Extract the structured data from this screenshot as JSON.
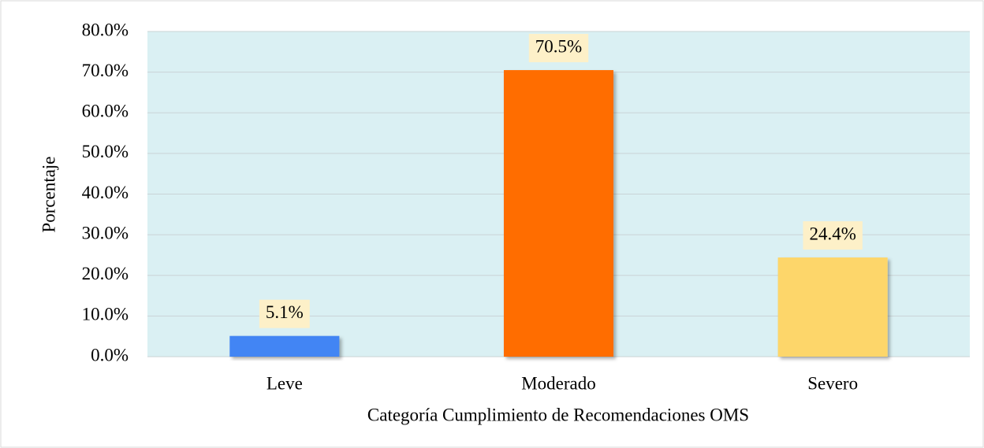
{
  "chart_data": {
    "type": "bar",
    "categories": [
      "Leve",
      "Moderado",
      "Severo"
    ],
    "values": [
      5.1,
      70.5,
      24.4
    ],
    "value_labels": [
      "5.1%",
      "70.5%",
      "24.4%"
    ],
    "colors": [
      "#4285f4",
      "#ff6d00",
      "#fdd66b"
    ],
    "xlabel": "Categoría Cumplimiento de Recomendaciones OMS",
    "ylabel": "Porcentaje",
    "ylim": [
      0,
      80
    ],
    "yticks": [
      {
        "value": 0,
        "label": "0.0%"
      },
      {
        "value": 10,
        "label": "10.0%"
      },
      {
        "value": 20,
        "label": "20.0%"
      },
      {
        "value": 30,
        "label": "30.0%"
      },
      {
        "value": 40,
        "label": "40.0%"
      },
      {
        "value": 50,
        "label": "50.0%"
      },
      {
        "value": 60,
        "label": "60.0%"
      },
      {
        "value": 70,
        "label": "70.0%"
      },
      {
        "value": 80,
        "label": "80.0%"
      }
    ],
    "grid": true
  }
}
